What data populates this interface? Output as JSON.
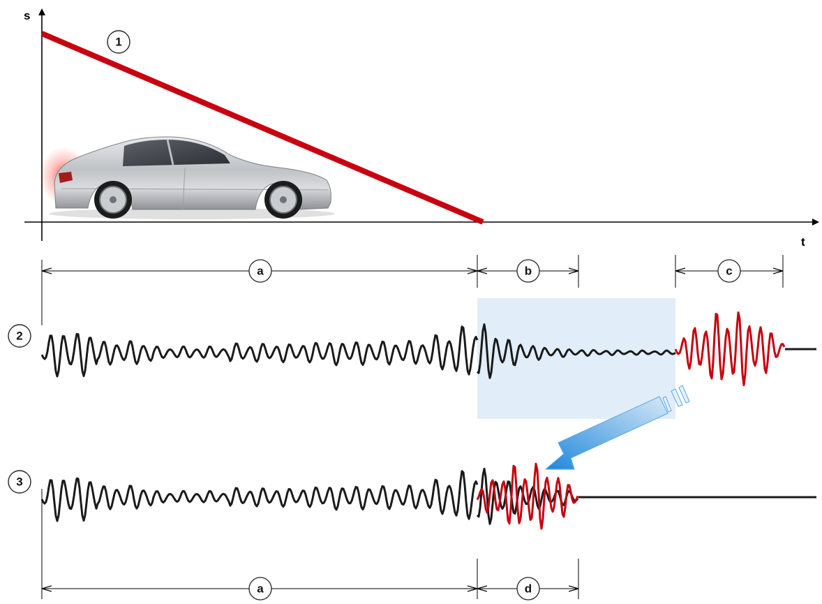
{
  "axes": {
    "y_label": "s",
    "x_label": "t"
  },
  "markers": {
    "m1": "1",
    "m2": "2",
    "m3": "3"
  },
  "intervals": {
    "a_top": "a",
    "b": "b",
    "c": "c",
    "a_bottom": "a",
    "d": "d"
  },
  "colors": {
    "line_red": "#c8000f",
    "signal_black": "#1a1a1a",
    "signal_red": "#c8000f",
    "highlight_box": "#dcebf8",
    "arrow_blue": "#2f8fd8"
  },
  "icons": {
    "car": "car-icon"
  }
}
